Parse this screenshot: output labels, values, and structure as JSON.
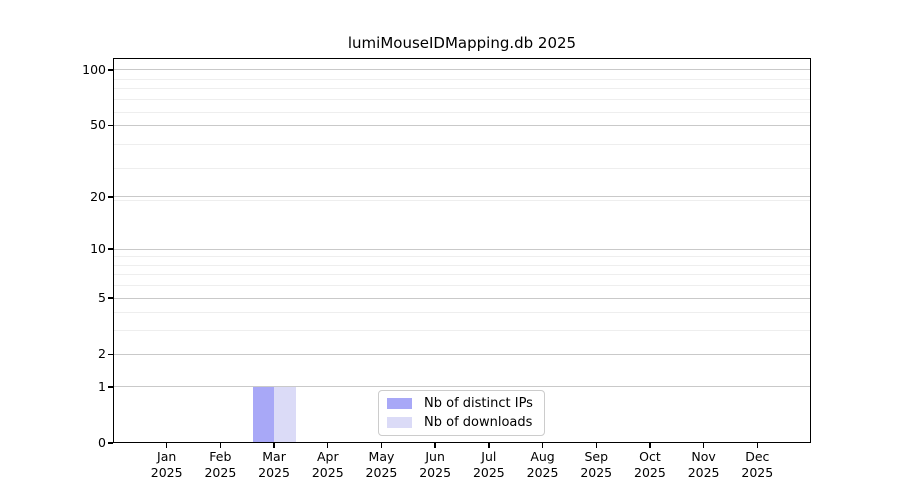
{
  "chart_data": {
    "type": "bar",
    "title": "lumiMouseIDMapping.db 2025",
    "categories": [
      {
        "month": "Jan",
        "year": "2025"
      },
      {
        "month": "Feb",
        "year": "2025"
      },
      {
        "month": "Mar",
        "year": "2025"
      },
      {
        "month": "Apr",
        "year": "2025"
      },
      {
        "month": "May",
        "year": "2025"
      },
      {
        "month": "Jun",
        "year": "2025"
      },
      {
        "month": "Jul",
        "year": "2025"
      },
      {
        "month": "Aug",
        "year": "2025"
      },
      {
        "month": "Sep",
        "year": "2025"
      },
      {
        "month": "Oct",
        "year": "2025"
      },
      {
        "month": "Nov",
        "year": "2025"
      },
      {
        "month": "Dec",
        "year": "2025"
      }
    ],
    "series": [
      {
        "name": "Nb of distinct IPs",
        "color": "#a8a8f7",
        "values": [
          0,
          0,
          1,
          0,
          0,
          0,
          0,
          0,
          0,
          0,
          0,
          0
        ]
      },
      {
        "name": "Nb of downloads",
        "color": "#dbdbf7",
        "values": [
          0,
          0,
          1,
          0,
          0,
          0,
          0,
          0,
          0,
          0,
          0,
          0
        ]
      }
    ],
    "y_axis": {
      "scale": "log10(1+y)",
      "major_ticks": [
        100,
        50,
        20,
        10,
        5,
        2,
        1,
        0
      ],
      "minor_gridlines": [
        3,
        4,
        6,
        7,
        8,
        9,
        19,
        29,
        39,
        59,
        69,
        79,
        89
      ],
      "ylim": [
        0,
        116
      ],
      "grid": true
    },
    "x_axis": {
      "gridlines": false
    },
    "legend": {
      "location": "lower center"
    },
    "colors": {
      "major_grid": "#c9c9c9",
      "minor_grid": "#eeeeee",
      "axis": "#000000",
      "background": "#ffffff"
    }
  }
}
